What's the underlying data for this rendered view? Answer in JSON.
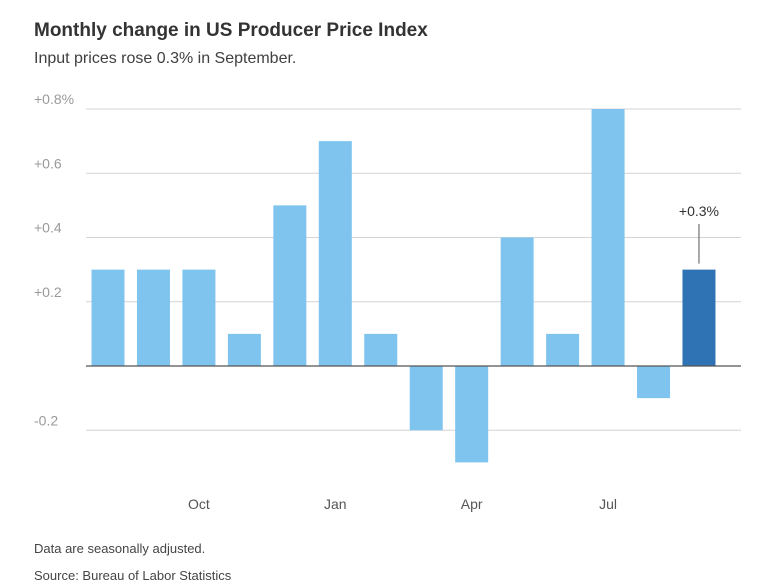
{
  "title": "Monthly change in US Producer Price Index",
  "subtitle": "Input prices rose 0.3% in September.",
  "note": "Data are seasonally adjusted.",
  "source": "Source: Bureau of Labor Statistics",
  "colors": {
    "bar": "#7fc4ee",
    "highlight": "#2f73b5",
    "grid": "#d4d4d4",
    "zero_line": "#555555",
    "tick_text": "#9a9a9a",
    "axis_text": "#555555"
  },
  "chart_data": {
    "type": "bar",
    "title": "Monthly change in US Producer Price Index",
    "subtitle": "Input prices rose 0.3% in September.",
    "xlabel": "",
    "ylabel": "",
    "ylim": [
      -0.4,
      0.8
    ],
    "grid": true,
    "y_ticks": [
      {
        "value": 0.8,
        "label": "+0.8%"
      },
      {
        "value": 0.6,
        "label": "+0.6"
      },
      {
        "value": 0.4,
        "label": "+0.4"
      },
      {
        "value": 0.2,
        "label": "+0.2"
      },
      {
        "value": -0.2,
        "label": "-0.2"
      }
    ],
    "x_ticks": [
      {
        "index": 2,
        "label": "Oct"
      },
      {
        "index": 5,
        "label": "Jan"
      },
      {
        "index": 8,
        "label": "Apr"
      },
      {
        "index": 11,
        "label": "Jul"
      }
    ],
    "values": [
      0.3,
      0.3,
      0.3,
      0.1,
      0.5,
      0.7,
      0.1,
      -0.2,
      -0.3,
      0.4,
      0.1,
      0.8,
      -0.1,
      0.3
    ],
    "highlight_index": 13,
    "annotation": {
      "index": 13,
      "label": "+0.3%"
    }
  }
}
